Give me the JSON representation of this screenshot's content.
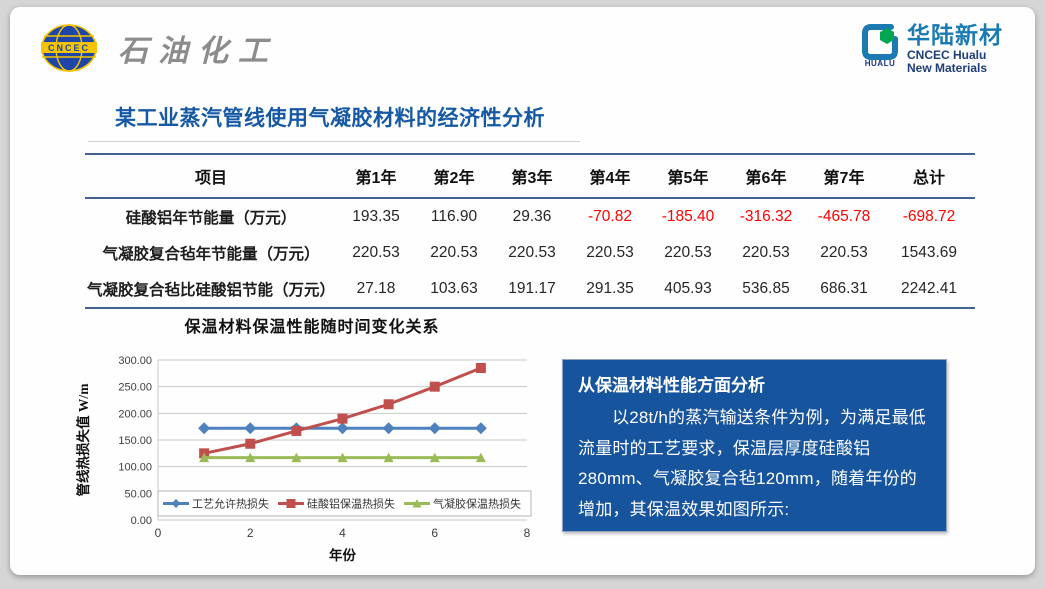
{
  "header": {
    "left_logo": {
      "emblem_text": "CNCEC",
      "brand_text": "石油化工"
    },
    "right_logo": {
      "mark_text": "HUALU",
      "cn_name": "华陆新材",
      "en_line1": "CNCEC Hualu",
      "en_line2": "New Materials"
    }
  },
  "title": "某工业蒸汽管线使用气凝胶材料的经济性分析",
  "table": {
    "columns": [
      "项目",
      "第1年",
      "第2年",
      "第3年",
      "第4年",
      "第5年",
      "第6年",
      "第7年",
      "总计"
    ],
    "rows": [
      {
        "label": "硅酸铝年节能量（万元）",
        "values": [
          "193.35",
          "116.90",
          "29.36",
          "-70.82",
          "-185.40",
          "-316.32",
          "-465.78",
          "-698.72"
        ]
      },
      {
        "label": "气凝胶复合毡年节能量（万元）",
        "values": [
          "220.53",
          "220.53",
          "220.53",
          "220.53",
          "220.53",
          "220.53",
          "220.53",
          "1543.69"
        ]
      },
      {
        "label": "气凝胶复合毡比硅酸铝节能（万元）",
        "values": [
          "27.18",
          "103.63",
          "191.17",
          "291.35",
          "405.93",
          "536.85",
          "686.31",
          "2242.41"
        ]
      }
    ],
    "negative_color": "#FF0000"
  },
  "chart_data": {
    "type": "line",
    "title": "保温材料保温性能随时间变化关系",
    "xlabel": "年份",
    "ylabel": "管线热损失值 W/m",
    "xlim": [
      0,
      8
    ],
    "ylim": [
      0,
      300
    ],
    "x_ticks": [
      0,
      2,
      4,
      6,
      8
    ],
    "y_ticks": [
      "300.00",
      "250.00",
      "200.00",
      "150.00",
      "100.00",
      "50.00",
      "0.00"
    ],
    "grid": true,
    "legend_position": "bottom-inside",
    "x": [
      1,
      2,
      3,
      4,
      5,
      6,
      7
    ],
    "series": [
      {
        "name": "工艺允许热损失",
        "color": "#4F81BD",
        "marker": "diamond",
        "values": [
          172,
          172,
          172,
          172,
          172,
          172,
          172
        ]
      },
      {
        "name": "硅酸铝保温热损失",
        "color": "#C0504D",
        "marker": "square",
        "values": [
          125,
          143,
          167,
          190,
          217,
          250,
          285
        ]
      },
      {
        "name": "气凝胶保温热损失",
        "color": "#9BBB59",
        "marker": "triangle",
        "values": [
          117,
          117,
          117,
          117,
          117,
          117,
          117
        ]
      }
    ]
  },
  "info_box": {
    "heading": "从保温材料性能方面分析",
    "body": "以28t/h的蒸汽输送条件为例，为满足最低流量时的工艺要求，保温层厚度硅酸铝280mm、气凝胶复合毡120mm，随着年份的增加，其保温效果如图所示:",
    "bg_color": "#17549E"
  }
}
